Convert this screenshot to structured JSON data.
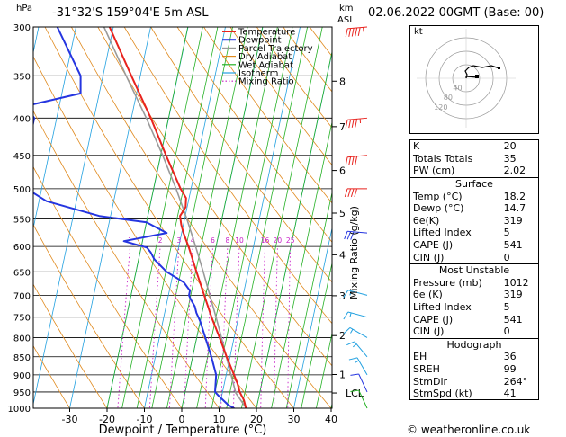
{
  "header": {
    "location": "-31°32'S  159°04'E  5m  ASL",
    "datetime": "02.06.2022  00GMT  (Base: 00)",
    "hpa_label": "hPa",
    "km_label": "km",
    "asl_label": "ASL"
  },
  "legend": [
    {
      "label": "Temperature",
      "color": "#e8231e",
      "style": "solid"
    },
    {
      "label": "Dewpoint",
      "color": "#2535e0",
      "style": "solid"
    },
    {
      "label": "Parcel Trajectory",
      "color": "#9a9a9a",
      "style": "solid"
    },
    {
      "label": "Dry Adiabat",
      "color": "#e08a1e",
      "style": "solid"
    },
    {
      "label": "Wet Adiabat",
      "color": "#23b023",
      "style": "solid"
    },
    {
      "label": "Isotherm",
      "color": "#20a0e0",
      "style": "solid"
    },
    {
      "label": "Mixing Ratio",
      "color": "#c81ec8",
      "style": "dotted"
    }
  ],
  "chart_data": {
    "type": "line",
    "title": "",
    "xlabel": "Dewpoint / Temperature (°C)",
    "ylabel": "",
    "y2label": "Mixing Ratio (g/kg)",
    "x_ticks": [
      -30,
      -20,
      -10,
      0,
      10,
      20,
      30,
      40
    ],
    "pressure_ticks": [
      300,
      350,
      400,
      450,
      500,
      550,
      600,
      650,
      700,
      750,
      800,
      850,
      900,
      950,
      1000
    ],
    "height_ticks": [
      {
        "label": "8",
        "p": 356
      },
      {
        "label": "7",
        "p": 411
      },
      {
        "label": "6",
        "p": 472
      },
      {
        "label": "5",
        "p": 540
      },
      {
        "label": "4",
        "p": 616
      },
      {
        "label": "3",
        "p": 701
      },
      {
        "label": "2",
        "p": 795
      },
      {
        "label": "1",
        "p": 899
      },
      {
        "label": "LCL",
        "p": 953
      }
    ],
    "mixing_ratio_labels": [
      "1",
      "2",
      "3",
      "4",
      "6",
      "8",
      "10",
      "16",
      "20",
      "25"
    ],
    "mixing_ratio_values": [
      1,
      2,
      3,
      4,
      6,
      8,
      10,
      16,
      20,
      25
    ],
    "series": [
      {
        "name": "Temperature",
        "color": "#e8231e",
        "points": [
          {
            "p": 1012,
            "t": 18.2
          },
          {
            "p": 1000,
            "t": 17.2
          },
          {
            "p": 975,
            "t": 16.2
          },
          {
            "p": 950,
            "t": 14.6
          },
          {
            "p": 925,
            "t": 13.5
          },
          {
            "p": 900,
            "t": 12.1
          },
          {
            "p": 850,
            "t": 9.1
          },
          {
            "p": 800,
            "t": 6.1
          },
          {
            "p": 750,
            "t": 2.8
          },
          {
            "p": 700,
            "t": -0.4
          },
          {
            "p": 650,
            "t": -3.8
          },
          {
            "p": 600,
            "t": -7.4
          },
          {
            "p": 575,
            "t": -9.5
          },
          {
            "p": 560,
            "t": -10.6
          },
          {
            "p": 545,
            "t": -11.4
          },
          {
            "p": 530,
            "t": -10.4
          },
          {
            "p": 515,
            "t": -10.8
          },
          {
            "p": 500,
            "t": -12.8
          },
          {
            "p": 450,
            "t": -18.6
          },
          {
            "p": 400,
            "t": -24.8
          },
          {
            "p": 350,
            "t": -32.4
          },
          {
            "p": 300,
            "t": -41.0
          }
        ]
      },
      {
        "name": "Dewpoint",
        "color": "#2535e0",
        "points": [
          {
            "p": 1012,
            "t": 14.7
          },
          {
            "p": 1000,
            "t": 14.0
          },
          {
            "p": 990,
            "t": 12.3
          },
          {
            "p": 960,
            "t": 9.0
          },
          {
            "p": 950,
            "t": 8.0
          },
          {
            "p": 900,
            "t": 7.3
          },
          {
            "p": 850,
            "t": 5.0
          },
          {
            "p": 800,
            "t": 2.3
          },
          {
            "p": 760,
            "t": 0.0
          },
          {
            "p": 740,
            "t": -1.5
          },
          {
            "p": 725,
            "t": -2.3
          },
          {
            "p": 710,
            "t": -3.7
          },
          {
            "p": 700,
            "t": -4.5
          },
          {
            "p": 690,
            "t": -4.5
          },
          {
            "p": 672,
            "t": -6.6
          },
          {
            "p": 650,
            "t": -11.8
          },
          {
            "p": 625,
            "t": -15.8
          },
          {
            "p": 611,
            "t": -17.2
          },
          {
            "p": 602,
            "t": -18.5
          },
          {
            "p": 590,
            "t": -25.0
          },
          {
            "p": 575,
            "t": -14.0
          },
          {
            "p": 556,
            "t": -20.0
          },
          {
            "p": 545,
            "t": -33.0
          },
          {
            "p": 520,
            "t": -48.0
          },
          {
            "p": 500,
            "t": -54.0
          },
          {
            "p": 450,
            "t": -56.0
          },
          {
            "p": 400,
            "t": -56.0
          },
          {
            "p": 385,
            "t": -59.0
          },
          {
            "p": 370,
            "t": -45.0
          },
          {
            "p": 350,
            "t": -46.0
          },
          {
            "p": 300,
            "t": -55.0
          }
        ]
      },
      {
        "name": "Parcel Trajectory",
        "color": "#9a9a9a",
        "points": [
          {
            "p": 1012,
            "t": 18.2
          },
          {
            "p": 953,
            "t": 13.6
          },
          {
            "p": 900,
            "t": 11.3
          },
          {
            "p": 850,
            "t": 9.0
          },
          {
            "p": 800,
            "t": 6.6
          },
          {
            "p": 750,
            "t": 4.0
          },
          {
            "p": 700,
            "t": 1.1
          },
          {
            "p": 650,
            "t": -2.0
          },
          {
            "p": 600,
            "t": -5.5
          },
          {
            "p": 550,
            "t": -9.4
          },
          {
            "p": 500,
            "t": -14.0
          },
          {
            "p": 450,
            "t": -19.5
          },
          {
            "p": 400,
            "t": -26.0
          },
          {
            "p": 350,
            "t": -33.8
          },
          {
            "p": 300,
            "t": -42.5
          }
        ]
      }
    ],
    "wind_barbs": [
      {
        "p": 300,
        "dir": 265,
        "spd": 55,
        "color": "#e8231e"
      },
      {
        "p": 400,
        "dir": 265,
        "spd": 45,
        "color": "#e8231e"
      },
      {
        "p": 450,
        "dir": 265,
        "spd": 40,
        "color": "#e8231e"
      },
      {
        "p": 500,
        "dir": 270,
        "spd": 40,
        "color": "#e8231e"
      },
      {
        "p": 575,
        "dir": 275,
        "spd": 30,
        "color": "#2535e0"
      },
      {
        "p": 700,
        "dir": 285,
        "spd": 15,
        "color": "#20a0e0"
      },
      {
        "p": 750,
        "dir": 285,
        "spd": 15,
        "color": "#20a0e0"
      },
      {
        "p": 800,
        "dir": 300,
        "spd": 15,
        "color": "#20a0e0"
      },
      {
        "p": 850,
        "dir": 320,
        "spd": 15,
        "color": "#20a0e0"
      },
      {
        "p": 900,
        "dir": 330,
        "spd": 15,
        "color": "#20a0e0"
      },
      {
        "p": 950,
        "dir": 335,
        "spd": 10,
        "color": "#2535e0"
      },
      {
        "p": 1000,
        "dir": 335,
        "spd": 10,
        "color": "#23b023"
      }
    ]
  },
  "hodograph": {
    "label": "kt",
    "ring_labels": [
      "40",
      "80",
      "120"
    ]
  },
  "indices": {
    "k_label": "K",
    "k": "20",
    "tt_label": "Totals Totals",
    "tt": "35",
    "pw_label": "PW (cm)",
    "pw": "2.02",
    "surface": {
      "title": "Surface",
      "temp_label": "Temp (°C)",
      "temp": "18.2",
      "dewp_label": "Dewp (°C)",
      "dewp": "14.7",
      "theta_label": "θe(K)",
      "theta": "319",
      "li_label": "Lifted Index",
      "li": "5",
      "cape_label": "CAPE (J)",
      "cape": "541",
      "cin_label": "CIN (J)",
      "cin": "0"
    },
    "unstable": {
      "title": "Most Unstable",
      "pres_label": "Pressure (mb)",
      "pres": "1012",
      "theta_label": "θe (K)",
      "theta": "319",
      "li_label": "Lifted Index",
      "li": "5",
      "cape_label": "CAPE (J)",
      "cape": "541",
      "cin_label": "CIN (J)",
      "cin": "0"
    },
    "hodo": {
      "title": "Hodograph",
      "eh_label": "EH",
      "eh": "36",
      "srh_label": "SREH",
      "srh": "99",
      "dir_label": "StmDir",
      "dir": "264°",
      "spd_label": "StmSpd (kt)",
      "spd": "41"
    }
  },
  "footer": "© weatheronline.co.uk"
}
